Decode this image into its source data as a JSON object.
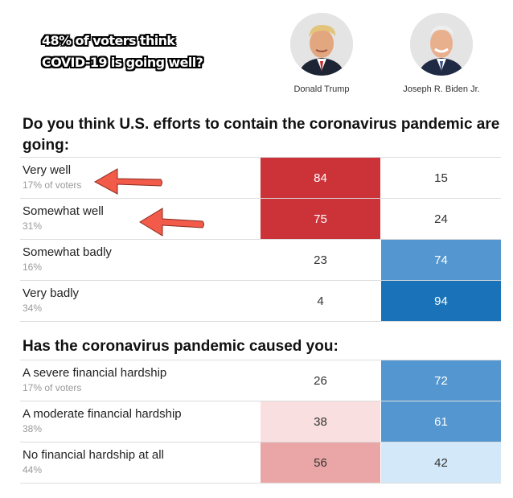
{
  "annotation": {
    "line1": "48% of voters think",
    "line2": "COVID-19 is going well?"
  },
  "candidates": [
    {
      "name": "Donald Trump"
    },
    {
      "name": "Joseph R. Biden Jr."
    }
  ],
  "colors": {
    "trump_strong": "#cc3339",
    "trump_light_1": "#f9dfdf",
    "trump_light_2": "#eaa6a6",
    "biden_strong": "#1a73b9",
    "biden_mid": "#5496cf",
    "biden_light": "#d3e9fa",
    "arrow": "#f25a4a"
  },
  "chart_data": [
    {
      "type": "table",
      "title": "Do you think U.S. efforts to contain the coronavirus pandemic are going:",
      "columns": [
        "Donald Trump",
        "Joseph R. Biden Jr."
      ],
      "rows": [
        {
          "label": "Very well",
          "share": "17% of voters",
          "trump": 84,
          "biden": 15
        },
        {
          "label": "Somewhat well",
          "share": "31%",
          "trump": 75,
          "biden": 24
        },
        {
          "label": "Somewhat badly",
          "share": "16%",
          "trump": 23,
          "biden": 74
        },
        {
          "label": "Very badly",
          "share": "34%",
          "trump": 4,
          "biden": 94
        }
      ]
    },
    {
      "type": "table",
      "title": "Has the coronavirus pandemic caused you:",
      "columns": [
        "Donald Trump",
        "Joseph R. Biden Jr."
      ],
      "rows": [
        {
          "label": "A severe financial hardship",
          "share": "17% of voters",
          "trump": 26,
          "biden": 72
        },
        {
          "label": "A moderate financial hardship",
          "share": "38%",
          "trump": 38,
          "biden": 61
        },
        {
          "label": "No financial hardship at all",
          "share": "44%",
          "trump": 56,
          "biden": 42
        }
      ]
    }
  ]
}
